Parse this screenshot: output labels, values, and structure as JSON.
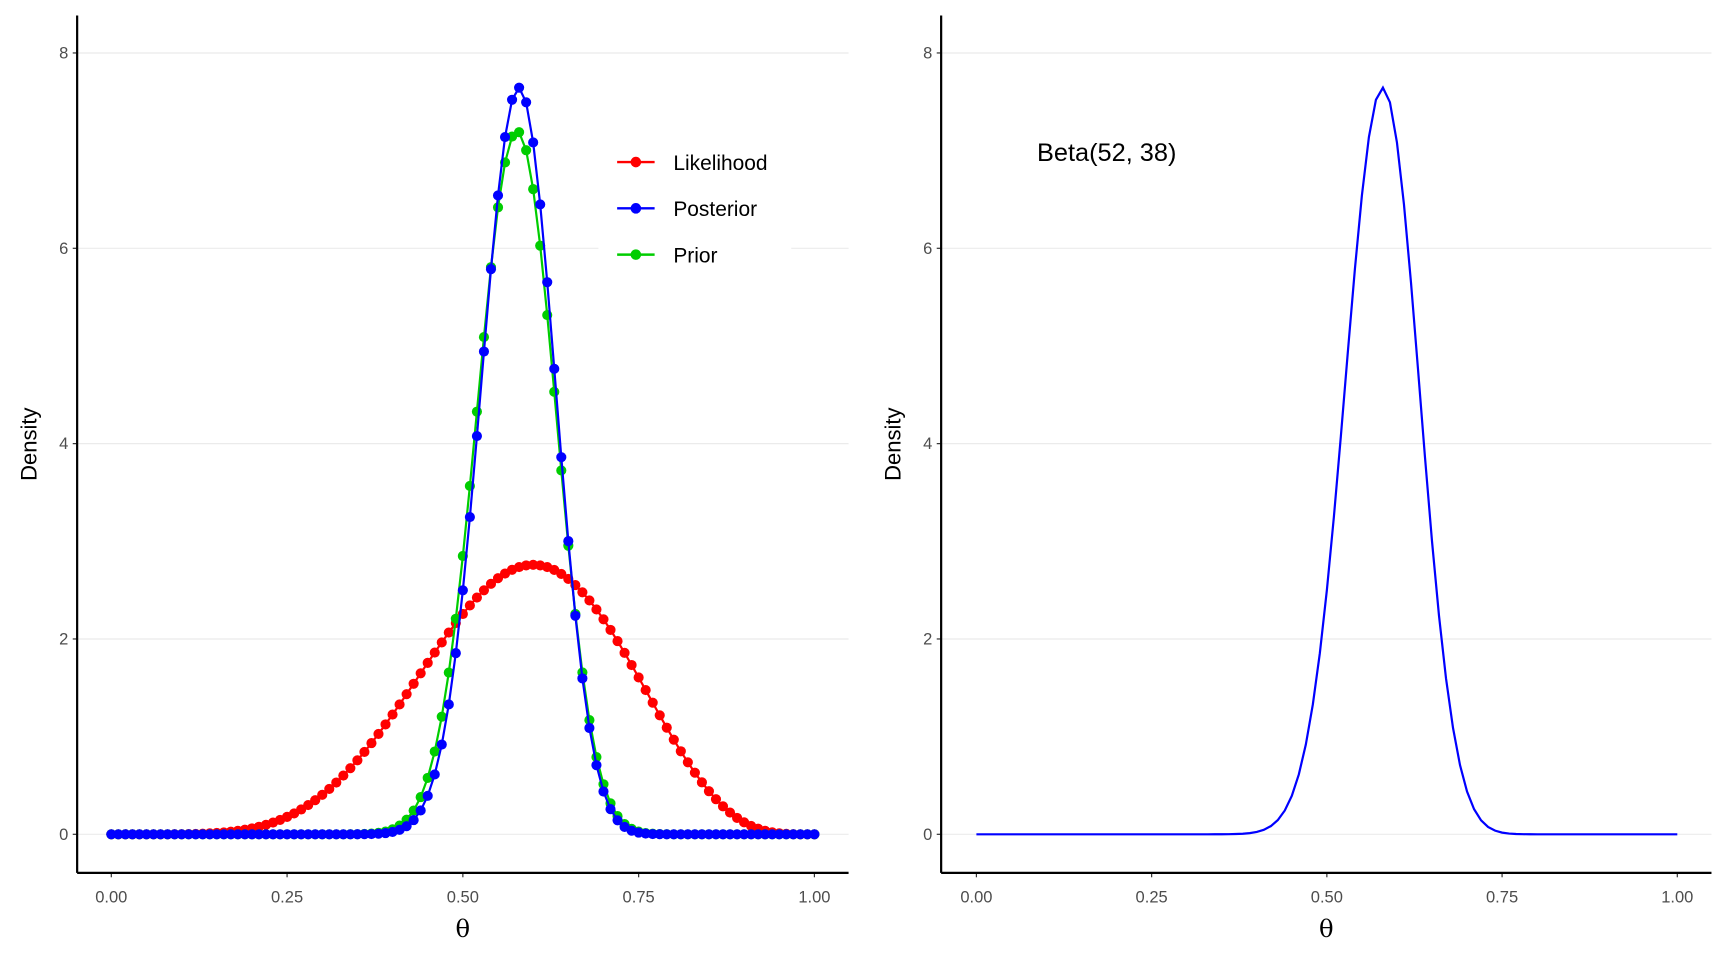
{
  "chart_data": [
    {
      "type": "line",
      "panel": "left",
      "xlabel": "θ",
      "ylabel": "Density",
      "xlim": [
        0,
        1
      ],
      "ylim": [
        0,
        8
      ],
      "xticks": [
        "0.00",
        "0.25",
        "0.50",
        "0.75",
        "1.00"
      ],
      "xtick_values": [
        0,
        0.25,
        0.5,
        0.75,
        1
      ],
      "yticks": [
        "0",
        "2",
        "4",
        "6",
        "8"
      ],
      "ytick_values": [
        0,
        2,
        4,
        6,
        8
      ],
      "grid": "horizontal-major",
      "legend_position": "top-right",
      "x": {
        "start": 0,
        "end": 1,
        "step": 0.01
      },
      "series": [
        {
          "name": "Likelihood",
          "color": "#FF0000",
          "distribution": "Beta",
          "alpha": 7,
          "beta": 5,
          "markers": true
        },
        {
          "name": "Posterior",
          "color": "#0000FF",
          "distribution": "Beta",
          "alpha": 52,
          "beta": 38,
          "markers": true
        },
        {
          "name": "Prior",
          "color": "#00CD00",
          "distribution": "Beta",
          "alpha": 46,
          "beta": 34,
          "markers": true
        }
      ]
    },
    {
      "type": "line",
      "panel": "right",
      "xlabel": "θ",
      "ylabel": "Density",
      "xlim": [
        0,
        1
      ],
      "ylim": [
        0,
        8
      ],
      "xticks": [
        "0.00",
        "0.25",
        "0.50",
        "0.75",
        "1.00"
      ],
      "xtick_values": [
        0,
        0.25,
        0.5,
        0.75,
        1
      ],
      "yticks": [
        "0",
        "2",
        "4",
        "6",
        "8"
      ],
      "ytick_values": [
        0,
        2,
        4,
        6,
        8
      ],
      "grid": "horizontal-major",
      "annotation": "Beta(52, 38)",
      "x": {
        "start": 0,
        "end": 1,
        "step": 0.01
      },
      "series": [
        {
          "name": "Beta(52, 38)",
          "color": "#0000FF",
          "distribution": "Beta",
          "alpha": 52,
          "beta": 38,
          "markers": false
        }
      ]
    }
  ]
}
